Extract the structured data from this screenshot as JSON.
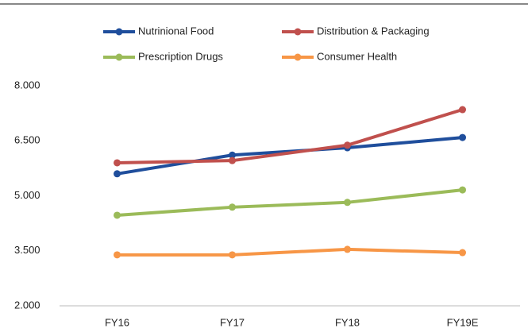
{
  "chart_data": {
    "type": "line",
    "categories": [
      "FY16",
      "FY17",
      "FY18",
      "FY19E"
    ],
    "series": [
      {
        "name": "Nutrinional Food",
        "color": "#1f4e9c",
        "values": [
          5600,
          6110,
          6310,
          6590
        ]
      },
      {
        "name": "Distribution & Packaging",
        "color": "#c0504d",
        "values": [
          5900,
          5960,
          6380,
          7350
        ]
      },
      {
        "name": "Prescription Drugs",
        "color": "#9bbb59",
        "values": [
          4470,
          4690,
          4820,
          5160
        ]
      },
      {
        "name": "Consumer Health",
        "color": "#f79646",
        "values": [
          3390,
          3390,
          3540,
          3450
        ]
      }
    ],
    "ylim": [
      2000,
      8000
    ],
    "yticks": [
      {
        "value": 2000,
        "label": "2.000"
      },
      {
        "value": 3500,
        "label": "3.500"
      },
      {
        "value": 5000,
        "label": "5.000"
      },
      {
        "value": 6500,
        "label": "6.500"
      },
      {
        "value": 8000,
        "label": "8.000"
      }
    ],
    "grid": false
  }
}
